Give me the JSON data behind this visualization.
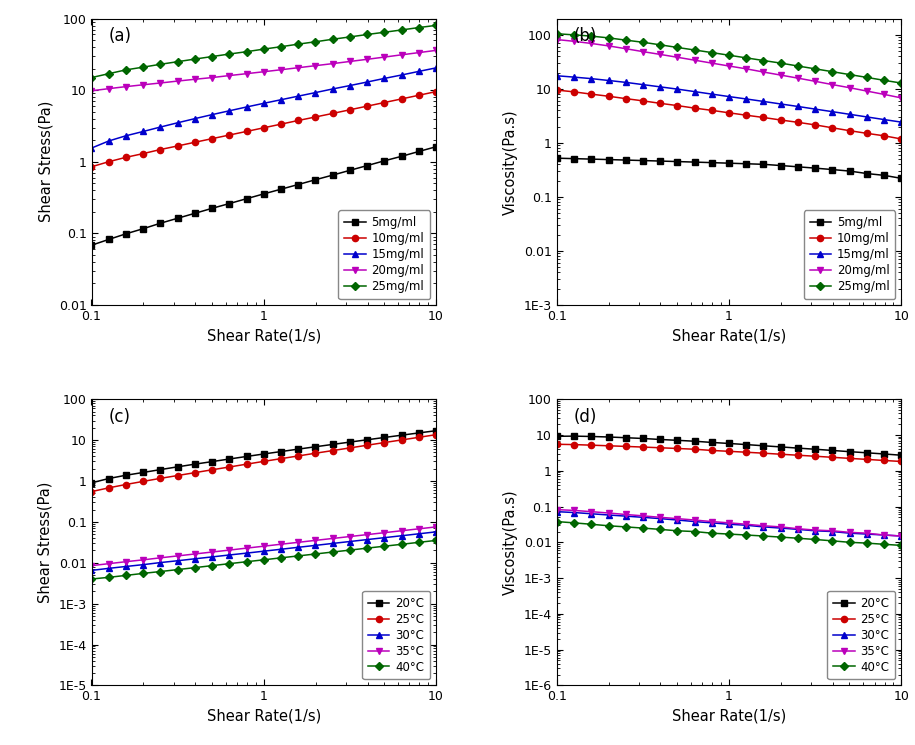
{
  "shear_rate": [
    0.1,
    0.126,
    0.158,
    0.2,
    0.251,
    0.316,
    0.398,
    0.501,
    0.631,
    0.794,
    1.0,
    1.259,
    1.585,
    1.995,
    2.512,
    3.162,
    3.981,
    5.012,
    6.31,
    7.943,
    10.0
  ],
  "conc_labels": [
    "5mg/ml",
    "10mg/ml",
    "15mg/ml",
    "20mg/ml",
    "25mg/ml"
  ],
  "conc_colors": [
    "#000000",
    "#cc0000",
    "#0000cc",
    "#bb00bb",
    "#006600"
  ],
  "conc_markers": [
    "s",
    "o",
    "^",
    "v",
    "D"
  ],
  "a_stress": {
    "5mg/ml": [
      0.068,
      0.082,
      0.098,
      0.116,
      0.138,
      0.162,
      0.19,
      0.223,
      0.26,
      0.304,
      0.355,
      0.413,
      0.48,
      0.56,
      0.65,
      0.758,
      0.883,
      1.03,
      1.19,
      1.39,
      1.62
    ],
    "10mg/ml": [
      0.85,
      1.0,
      1.15,
      1.3,
      1.48,
      1.66,
      1.87,
      2.1,
      2.36,
      2.65,
      2.98,
      3.35,
      3.77,
      4.22,
      4.73,
      5.32,
      5.98,
      6.72,
      7.55,
      8.49,
      9.55
    ],
    "15mg/ml": [
      1.55,
      1.95,
      2.3,
      2.65,
      3.05,
      3.5,
      4.0,
      4.55,
      5.15,
      5.82,
      6.55,
      7.35,
      8.25,
      9.25,
      10.4,
      11.6,
      13.0,
      14.6,
      16.3,
      18.3,
      20.5
    ],
    "20mg/ml": [
      9.8,
      10.5,
      11.2,
      11.9,
      12.6,
      13.4,
      14.2,
      15.0,
      16.0,
      17.0,
      18.1,
      19.3,
      20.6,
      22.0,
      23.5,
      25.2,
      27.0,
      29.0,
      31.2,
      33.5,
      36.0
    ],
    "25mg/ml": [
      15.0,
      17.0,
      19.2,
      21.0,
      23.0,
      25.0,
      27.2,
      29.5,
      32.0,
      34.5,
      37.5,
      40.5,
      44.0,
      47.5,
      51.5,
      55.5,
      60.0,
      64.5,
      69.5,
      75.0,
      80.5
    ]
  },
  "b_viscosity": {
    "5mg/ml": [
      0.52,
      0.51,
      0.5,
      0.49,
      0.48,
      0.47,
      0.46,
      0.45,
      0.44,
      0.43,
      0.42,
      0.41,
      0.4,
      0.38,
      0.36,
      0.34,
      0.32,
      0.3,
      0.27,
      0.25,
      0.22
    ],
    "10mg/ml": [
      9.5,
      8.8,
      8.0,
      7.3,
      6.6,
      6.0,
      5.4,
      4.9,
      4.4,
      4.0,
      3.6,
      3.25,
      2.95,
      2.65,
      2.4,
      2.15,
      1.9,
      1.68,
      1.5,
      1.35,
      1.18
    ],
    "15mg/ml": [
      17.5,
      16.5,
      15.5,
      14.3,
      13.2,
      12.0,
      10.9,
      9.9,
      8.9,
      8.0,
      7.2,
      6.5,
      5.85,
      5.25,
      4.72,
      4.22,
      3.78,
      3.38,
      3.02,
      2.7,
      2.42
    ],
    "20mg/ml": [
      82.0,
      76.0,
      69.5,
      62.5,
      55.5,
      49.0,
      43.5,
      38.5,
      34.0,
      30.0,
      26.5,
      23.5,
      20.5,
      18.0,
      15.8,
      13.8,
      12.0,
      10.5,
      9.1,
      7.9,
      6.8
    ],
    "25mg/ml": [
      105.0,
      100.0,
      95.0,
      88.0,
      80.0,
      73.0,
      65.5,
      58.5,
      52.5,
      47.0,
      42.0,
      37.5,
      33.5,
      30.0,
      26.5,
      23.5,
      20.8,
      18.4,
      16.3,
      14.4,
      12.8
    ]
  },
  "temp_labels": [
    "20°C",
    "25°C",
    "30°C",
    "35°C",
    "40°C"
  ],
  "temp_colors": [
    "#000000",
    "#cc0000",
    "#0000cc",
    "#bb00bb",
    "#006600"
  ],
  "temp_markers": [
    "s",
    "o",
    "^",
    "v",
    "D"
  ],
  "c_stress": {
    "20°C": [
      0.9,
      1.15,
      1.38,
      1.62,
      1.9,
      2.22,
      2.58,
      2.98,
      3.45,
      3.98,
      4.58,
      5.25,
      6.02,
      6.88,
      7.85,
      8.95,
      10.2,
      11.6,
      13.2,
      15.0,
      17.0
    ],
    "25°C": [
      0.55,
      0.68,
      0.82,
      0.98,
      1.16,
      1.36,
      1.6,
      1.88,
      2.2,
      2.58,
      3.02,
      3.52,
      4.1,
      4.78,
      5.55,
      6.45,
      7.5,
      8.72,
      10.1,
      11.7,
      13.6
    ],
    "30°C": [
      0.0065,
      0.0073,
      0.0081,
      0.009,
      0.0101,
      0.0112,
      0.0125,
      0.0139,
      0.0155,
      0.0172,
      0.0192,
      0.0214,
      0.0239,
      0.0266,
      0.0297,
      0.0331,
      0.0369,
      0.0411,
      0.0458,
      0.0511,
      0.057
    ],
    "35°C": [
      0.0085,
      0.0095,
      0.0106,
      0.0118,
      0.0132,
      0.0147,
      0.0164,
      0.0183,
      0.0204,
      0.0228,
      0.0254,
      0.0284,
      0.0316,
      0.0353,
      0.0393,
      0.0438,
      0.0488,
      0.0544,
      0.0607,
      0.0676,
      0.0754
    ],
    "40°C": [
      0.004,
      0.0044,
      0.0049,
      0.0055,
      0.0061,
      0.0068,
      0.0076,
      0.0085,
      0.0095,
      0.0106,
      0.0118,
      0.0132,
      0.0147,
      0.0164,
      0.0183,
      0.0204,
      0.0228,
      0.0254,
      0.0283,
      0.0316,
      0.0352
    ]
  },
  "d_viscosity": {
    "20°C": [
      9.2,
      9.3,
      9.1,
      8.8,
      8.4,
      8.0,
      7.5,
      7.1,
      6.7,
      6.2,
      5.8,
      5.4,
      5.0,
      4.65,
      4.3,
      4.0,
      3.7,
      3.42,
      3.18,
      2.95,
      2.72
    ],
    "25°C": [
      5.5,
      5.4,
      5.2,
      5.0,
      4.8,
      4.6,
      4.4,
      4.2,
      4.0,
      3.7,
      3.5,
      3.3,
      3.1,
      2.9,
      2.72,
      2.55,
      2.38,
      2.22,
      2.08,
      1.94,
      1.82
    ],
    "30°C": [
      0.072,
      0.068,
      0.063,
      0.058,
      0.054,
      0.05,
      0.046,
      0.042,
      0.038,
      0.035,
      0.032,
      0.03,
      0.027,
      0.025,
      0.023,
      0.021,
      0.02,
      0.018,
      0.017,
      0.016,
      0.015
    ],
    "35°C": [
      0.082,
      0.078,
      0.072,
      0.066,
      0.06,
      0.055,
      0.05,
      0.046,
      0.042,
      0.038,
      0.035,
      0.032,
      0.029,
      0.027,
      0.024,
      0.022,
      0.021,
      0.019,
      0.018,
      0.016,
      0.015
    ],
    "40°C": [
      0.038,
      0.035,
      0.032,
      0.029,
      0.027,
      0.025,
      0.023,
      0.021,
      0.02,
      0.018,
      0.017,
      0.016,
      0.015,
      0.014,
      0.013,
      0.012,
      0.011,
      0.01,
      0.0095,
      0.0088,
      0.0082
    ]
  },
  "subplot_labels": [
    "(a)",
    "(b)",
    "(c)",
    "(d)"
  ],
  "xlabel": "Shear Rate(1/s)",
  "ylabel_stress": "Shear Stress(Pa)",
  "ylabel_viscosity": "Viscosity(Pa.s)",
  "panel_a_ylim": [
    0.01,
    100
  ],
  "panel_b_ylim": [
    0.001,
    200
  ],
  "panel_c_ylim": [
    1e-05,
    100
  ],
  "panel_d_ylim": [
    1e-06,
    100
  ],
  "xlim": [
    0.1,
    10
  ]
}
